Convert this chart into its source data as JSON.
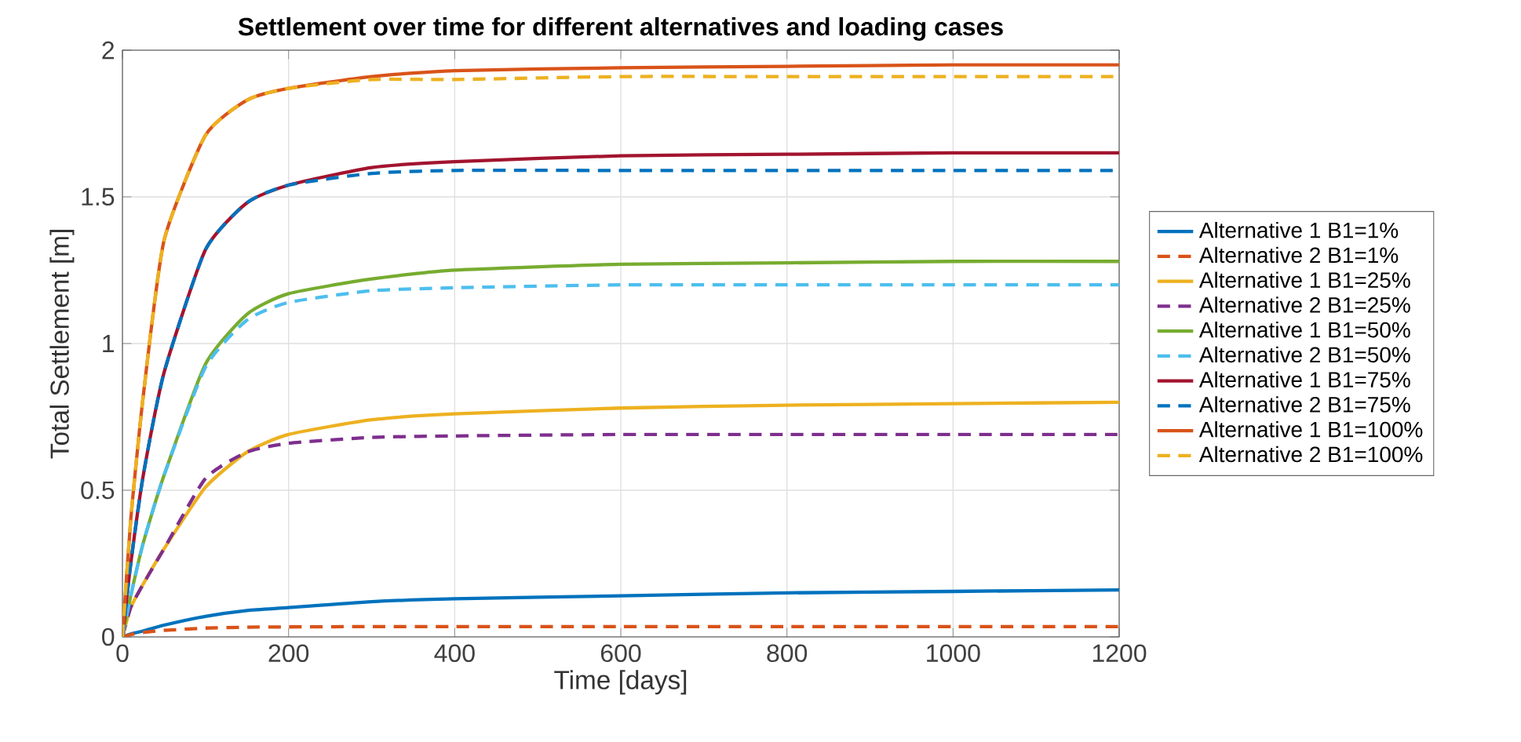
{
  "chart_data": {
    "type": "line",
    "title": "Settlement over time for different alternatives and loading cases",
    "xlabel": "Time [days]",
    "ylabel": "Total Settlement [m]",
    "x": [
      0,
      10,
      25,
      50,
      100,
      150,
      200,
      300,
      400,
      600,
      800,
      1000,
      1200
    ],
    "series": [
      {
        "name": "Alternative 1 B1=1%",
        "color": "#0072bd",
        "line_style": "solid",
        "values": [
          0,
          0.01,
          0.02,
          0.04,
          0.07,
          0.09,
          0.1,
          0.12,
          0.13,
          0.14,
          0.15,
          0.155,
          0.16
        ]
      },
      {
        "name": "Alternative 2 B1=1%",
        "color": "#d95319",
        "line_style": "dashed",
        "values": [
          0,
          0.008,
          0.015,
          0.022,
          0.03,
          0.033,
          0.034,
          0.035,
          0.035,
          0.035,
          0.035,
          0.035,
          0.035
        ]
      },
      {
        "name": "Alternative 1 B1=25%",
        "color": "#edb120",
        "line_style": "solid",
        "values": [
          0,
          0.1,
          0.18,
          0.3,
          0.51,
          0.63,
          0.69,
          0.74,
          0.76,
          0.78,
          0.79,
          0.795,
          0.8
        ]
      },
      {
        "name": "Alternative 2 B1=25%",
        "color": "#7e2f8e",
        "line_style": "dashed",
        "values": [
          0,
          0.1,
          0.18,
          0.3,
          0.54,
          0.63,
          0.66,
          0.68,
          0.685,
          0.69,
          0.69,
          0.69,
          0.69
        ]
      },
      {
        "name": "Alternative 1 B1=50%",
        "color": "#77ac30",
        "line_style": "solid",
        "values": [
          0,
          0.14,
          0.32,
          0.55,
          0.93,
          1.1,
          1.17,
          1.22,
          1.25,
          1.27,
          1.275,
          1.28,
          1.28
        ]
      },
      {
        "name": "Alternative 2 B1=50%",
        "color": "#4dbeee",
        "line_style": "dashed",
        "values": [
          0,
          0.14,
          0.32,
          0.55,
          0.92,
          1.08,
          1.14,
          1.18,
          1.19,
          1.2,
          1.2,
          1.2,
          1.2
        ]
      },
      {
        "name": "Alternative 1 B1=75%",
        "color": "#a2142f",
        "line_style": "solid",
        "values": [
          0,
          0.25,
          0.55,
          0.9,
          1.32,
          1.48,
          1.54,
          1.6,
          1.62,
          1.64,
          1.645,
          1.65,
          1.65
        ]
      },
      {
        "name": "Alternative 2 B1=75%",
        "color": "#0072bd",
        "line_style": "dashed",
        "values": [
          0,
          0.25,
          0.55,
          0.9,
          1.32,
          1.48,
          1.54,
          1.58,
          1.59,
          1.59,
          1.59,
          1.59,
          1.59
        ]
      },
      {
        "name": "Alternative 1 B1=100%",
        "color": "#d95319",
        "line_style": "solid",
        "values": [
          0,
          0.4,
          0.82,
          1.35,
          1.71,
          1.83,
          1.87,
          1.91,
          1.93,
          1.94,
          1.945,
          1.95,
          1.95
        ]
      },
      {
        "name": "Alternative 2 B1=100%",
        "color": "#edb120",
        "line_style": "dashed",
        "values": [
          0,
          0.4,
          0.82,
          1.35,
          1.71,
          1.83,
          1.87,
          1.9,
          1.9,
          1.91,
          1.91,
          1.91,
          1.91
        ]
      }
    ],
    "xlim": [
      0,
      1200
    ],
    "ylim": [
      0,
      2
    ],
    "xticks": [
      0,
      200,
      400,
      600,
      800,
      1000,
      1200
    ],
    "yticks": [
      0,
      0.5,
      1,
      1.5,
      2
    ],
    "grid": true,
    "legend": "right",
    "marker": "none"
  }
}
